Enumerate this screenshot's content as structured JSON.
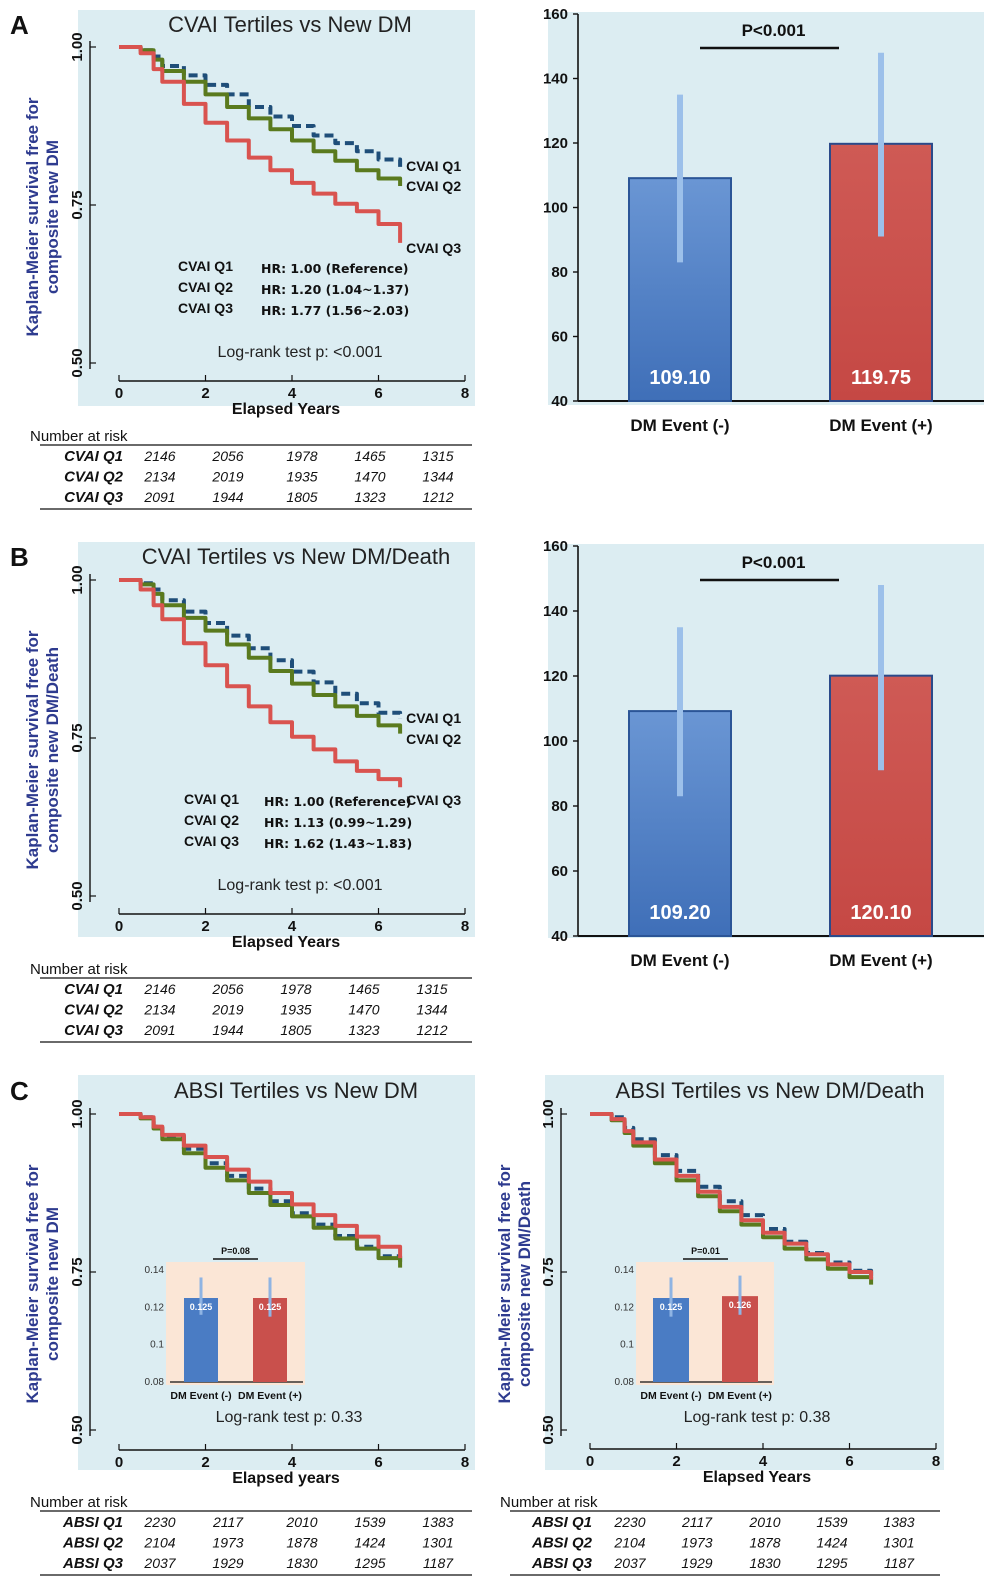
{
  "panel_letters": [
    "A",
    "B",
    "C"
  ],
  "number_at_risk_label": "Number at risk",
  "chart_data": [
    {
      "id": "A_km",
      "type": "line",
      "title": "CVAI Tertiles vs New DM",
      "ylabel": "Kaplan-Meier survival free for composite new DM",
      "xlabel": "Elapsed Years",
      "xlim": [
        0,
        8
      ],
      "ylim": [
        0.5,
        1.0
      ],
      "xticks": [
        "0",
        "2",
        "4",
        "6",
        "8"
      ],
      "yticks": [
        "0.50",
        "0.75",
        "1.00"
      ],
      "grid": false,
      "series": [
        {
          "name": "CVAI Q1",
          "color": "#1f4e79",
          "dashed": true,
          "x": [
            0,
            0.3,
            0.5,
            0.8,
            1,
            1.5,
            2,
            2.5,
            3,
            3.5,
            4,
            4.5,
            5,
            5.5,
            6,
            6.5
          ],
          "y": [
            1.0,
            1.0,
            0.995,
            0.985,
            0.97,
            0.955,
            0.94,
            0.925,
            0.905,
            0.89,
            0.875,
            0.86,
            0.848,
            0.835,
            0.822,
            0.81
          ]
        },
        {
          "name": "CVAI Q2",
          "color": "#5a7a1e",
          "dashed": false,
          "x": [
            0,
            0.3,
            0.5,
            0.8,
            1,
            1.5,
            2,
            2.5,
            3,
            3.5,
            4,
            4.5,
            5,
            5.5,
            6,
            6.5
          ],
          "y": [
            1.0,
            1.0,
            0.995,
            0.98,
            0.962,
            0.945,
            0.925,
            0.905,
            0.887,
            0.87,
            0.852,
            0.835,
            0.82,
            0.805,
            0.792,
            0.78
          ]
        },
        {
          "name": "CVAI Q3",
          "color": "#d9534f",
          "dashed": false,
          "x": [
            0,
            0.3,
            0.5,
            0.8,
            1,
            1.5,
            2,
            2.5,
            3,
            3.5,
            4,
            4.5,
            5,
            5.5,
            6,
            6.5
          ],
          "y": [
            1.0,
            1.0,
            0.99,
            0.965,
            0.945,
            0.91,
            0.88,
            0.852,
            0.825,
            0.805,
            0.785,
            0.768,
            0.752,
            0.74,
            0.72,
            0.69
          ]
        }
      ],
      "hr_rows": [
        {
          "group": "CVAI Q1",
          "hr": "HR: 1.00 (Reference)"
        },
        {
          "group": "CVAI Q2",
          "hr": "HR: 1.20 (1.04~1.37)"
        },
        {
          "group": "CVAI Q3",
          "hr": "HR: 1.77 (1.56~2.03)"
        }
      ],
      "logrank": "Log-rank test p: <0.001",
      "risk_table": [
        {
          "group": "CVAI Q1",
          "values": [
            "2146",
            "2056",
            "1978",
            "1465",
            "1315"
          ]
        },
        {
          "group": "CVAI Q2",
          "values": [
            "2134",
            "2019",
            "1935",
            "1470",
            "1344"
          ]
        },
        {
          "group": "CVAI Q3",
          "values": [
            "2091",
            "1944",
            "1805",
            "1323",
            "1212"
          ]
        }
      ]
    },
    {
      "id": "A_bar",
      "type": "bar",
      "categories": [
        "DM Event (-)",
        "DM Event (+)"
      ],
      "values": [
        109.1,
        119.75
      ],
      "value_labels": [
        "109.10",
        "119.75"
      ],
      "error_low": [
        83,
        91
      ],
      "error_high": [
        135,
        148
      ],
      "colors": [
        "#4a7cc4",
        "#c9504c"
      ],
      "ylim": [
        40,
        160
      ],
      "yticks": [
        "40",
        "60",
        "80",
        "100",
        "120",
        "140",
        "160"
      ],
      "annotation": "P<0.001"
    },
    {
      "id": "B_km",
      "type": "line",
      "title": "CVAI Tertiles vs New DM/Death",
      "ylabel": "Kaplan-Meier survival free for composite new DM/Death",
      "xlabel": "Elapsed Years",
      "xlim": [
        0,
        8
      ],
      "ylim": [
        0.5,
        1.0
      ],
      "xticks": [
        "0",
        "2",
        "4",
        "6",
        "8"
      ],
      "yticks": [
        "0.50",
        "0.75",
        "1.00"
      ],
      "grid": false,
      "series": [
        {
          "name": "CVAI Q1",
          "color": "#1f4e79",
          "dashed": true,
          "x": [
            0,
            0.3,
            0.5,
            0.8,
            1,
            1.5,
            2,
            2.5,
            3,
            3.5,
            4,
            4.5,
            5,
            5.5,
            6,
            6.5
          ],
          "y": [
            1.0,
            1.0,
            0.995,
            0.985,
            0.968,
            0.95,
            0.932,
            0.912,
            0.892,
            0.873,
            0.855,
            0.838,
            0.82,
            0.805,
            0.79,
            0.78
          ]
        },
        {
          "name": "CVAI Q2",
          "color": "#5a7a1e",
          "dashed": false,
          "x": [
            0,
            0.3,
            0.5,
            0.8,
            1,
            1.5,
            2,
            2.5,
            3,
            3.5,
            4,
            4.5,
            5,
            5.5,
            6,
            6.5
          ],
          "y": [
            1.0,
            1.0,
            0.993,
            0.978,
            0.96,
            0.94,
            0.92,
            0.898,
            0.877,
            0.856,
            0.836,
            0.818,
            0.8,
            0.785,
            0.77,
            0.757
          ]
        },
        {
          "name": "CVAI Q3",
          "color": "#d9534f",
          "dashed": false,
          "x": [
            0,
            0.3,
            0.5,
            0.8,
            1,
            1.5,
            2,
            2.5,
            3,
            3.5,
            4,
            4.5,
            5,
            5.5,
            6,
            6.5
          ],
          "y": [
            1.0,
            1.0,
            0.985,
            0.96,
            0.938,
            0.9,
            0.865,
            0.832,
            0.8,
            0.775,
            0.752,
            0.732,
            0.713,
            0.698,
            0.685,
            0.672
          ]
        }
      ],
      "hr_rows": [
        {
          "group": "CVAI Q1",
          "hr": "HR: 1.00 (Reference)"
        },
        {
          "group": "CVAI Q2",
          "hr": "HR: 1.13 (0.99~1.29)"
        },
        {
          "group": "CVAI Q3",
          "hr": "HR: 1.62 (1.43~1.83)"
        }
      ],
      "logrank": "Log-rank test p: <0.001",
      "risk_table": [
        {
          "group": "CVAI Q1",
          "values": [
            "2146",
            "2056",
            "1978",
            "1465",
            "1315"
          ]
        },
        {
          "group": "CVAI Q2",
          "values": [
            "2134",
            "2019",
            "1935",
            "1470",
            "1344"
          ]
        },
        {
          "group": "CVAI Q3",
          "values": [
            "2091",
            "1944",
            "1805",
            "1323",
            "1212"
          ]
        }
      ]
    },
    {
      "id": "B_bar",
      "type": "bar",
      "categories": [
        "DM Event (-)",
        "DM Event (+)"
      ],
      "values": [
        109.2,
        120.1
      ],
      "value_labels": [
        "109.20",
        "120.10"
      ],
      "error_low": [
        83,
        91
      ],
      "error_high": [
        135,
        148
      ],
      "colors": [
        "#4a7cc4",
        "#c9504c"
      ],
      "ylim": [
        40,
        160
      ],
      "yticks": [
        "40",
        "60",
        "80",
        "100",
        "120",
        "140",
        "160"
      ],
      "annotation": "P<0.001"
    },
    {
      "id": "C1_km",
      "type": "line",
      "title": "ABSI Tertiles vs New DM",
      "ylabel": "Kaplan-Meier survival free for composite new DM",
      "xlabel": "Elapsed years",
      "xlim": [
        0,
        8
      ],
      "ylim": [
        0.5,
        1.0
      ],
      "xticks": [
        "0",
        "2",
        "4",
        "6",
        "8"
      ],
      "yticks": [
        "0.50",
        "0.75",
        "1.00"
      ],
      "grid": false,
      "series": [
        {
          "name": "ABSI Q1",
          "color": "#1f4e79",
          "dashed": true,
          "x": [
            0,
            0.3,
            0.5,
            0.8,
            1,
            1.5,
            2,
            2.5,
            3,
            3.5,
            4,
            4.5,
            5,
            5.5,
            6,
            6.5
          ],
          "y": [
            1.0,
            1.0,
            0.995,
            0.98,
            0.965,
            0.945,
            0.922,
            0.902,
            0.882,
            0.862,
            0.843,
            0.825,
            0.807,
            0.79,
            0.775,
            0.76
          ]
        },
        {
          "name": "ABSI Q2",
          "color": "#5a7a1e",
          "dashed": false,
          "x": [
            0,
            0.3,
            0.5,
            0.8,
            1,
            1.5,
            2,
            2.5,
            3,
            3.5,
            4,
            4.5,
            5,
            5.5,
            6,
            6.5
          ],
          "y": [
            1.0,
            1.0,
            0.993,
            0.977,
            0.96,
            0.938,
            0.915,
            0.895,
            0.875,
            0.856,
            0.838,
            0.82,
            0.803,
            0.787,
            0.772,
            0.757
          ]
        },
        {
          "name": "ABSI Q3",
          "color": "#d9534f",
          "dashed": false,
          "x": [
            0,
            0.3,
            0.5,
            0.8,
            1,
            1.5,
            2,
            2.5,
            3,
            3.5,
            4,
            4.5,
            5,
            5.5,
            6,
            6.5
          ],
          "y": [
            1.0,
            1.0,
            0.995,
            0.98,
            0.967,
            0.95,
            0.932,
            0.912,
            0.893,
            0.875,
            0.857,
            0.84,
            0.823,
            0.806,
            0.79,
            0.772
          ]
        }
      ],
      "logrank": "Log-rank test p: 0.33",
      "inset": {
        "categories": [
          "DM Event (-)",
          "DM Event (+)"
        ],
        "values": [
          0.125,
          0.125
        ],
        "value_labels": [
          "0.125",
          "0.125"
        ],
        "error_low": [
          0.116,
          0.115
        ],
        "error_high": [
          0.136,
          0.136
        ],
        "ylim": [
          0.08,
          0.14
        ],
        "yticks": [
          "0.08",
          "0.1",
          "0.12",
          "0.14"
        ],
        "annotation": "P=0.08"
      },
      "risk_table": [
        {
          "group": "ABSI Q1",
          "values": [
            "2230",
            "2117",
            "2010",
            "1539",
            "1383"
          ]
        },
        {
          "group": "ABSI Q2",
          "values": [
            "2104",
            "1973",
            "1878",
            "1424",
            "1301"
          ]
        },
        {
          "group": "ABSI Q3",
          "values": [
            "2037",
            "1929",
            "1830",
            "1295",
            "1187"
          ]
        }
      ]
    },
    {
      "id": "C2_km",
      "type": "line",
      "title": "ABSI Tertiles vs New DM/Death",
      "ylabel": "Kaplan-Meier survival free for composite new DM/Death",
      "xlabel": "Elapsed Years",
      "xlim": [
        0,
        8
      ],
      "ylim": [
        0.5,
        1.0
      ],
      "xticks": [
        "0",
        "2",
        "4",
        "6",
        "8"
      ],
      "yticks": [
        "0.50",
        "0.75",
        "1.00"
      ],
      "grid": false,
      "series": [
        {
          "name": "ABSI Q1",
          "color": "#1f4e79",
          "dashed": true,
          "x": [
            0,
            0.3,
            0.5,
            0.8,
            1,
            1.5,
            2,
            2.5,
            3,
            3.5,
            4,
            4.5,
            5,
            5.5,
            6,
            6.5
          ],
          "y": [
            1.0,
            1.0,
            0.995,
            0.978,
            0.96,
            0.935,
            0.91,
            0.885,
            0.862,
            0.84,
            0.818,
            0.798,
            0.78,
            0.765,
            0.752,
            0.742
          ]
        },
        {
          "name": "ABSI Q2",
          "color": "#5a7a1e",
          "dashed": false,
          "x": [
            0,
            0.3,
            0.5,
            0.8,
            1,
            1.5,
            2,
            2.5,
            3,
            3.5,
            4,
            4.5,
            5,
            5.5,
            6,
            6.5
          ],
          "y": [
            1.0,
            1.0,
            0.99,
            0.97,
            0.95,
            0.922,
            0.895,
            0.87,
            0.846,
            0.825,
            0.805,
            0.787,
            0.77,
            0.755,
            0.742,
            0.73
          ]
        },
        {
          "name": "ABSI Q3",
          "color": "#d9534f",
          "dashed": false,
          "x": [
            0,
            0.3,
            0.5,
            0.8,
            1,
            1.5,
            2,
            2.5,
            3,
            3.5,
            4,
            4.5,
            5,
            5.5,
            6,
            6.5
          ],
          "y": [
            1.0,
            1.0,
            0.992,
            0.973,
            0.955,
            0.928,
            0.902,
            0.877,
            0.853,
            0.832,
            0.812,
            0.795,
            0.778,
            0.762,
            0.75,
            0.738
          ]
        }
      ],
      "logrank": "Log-rank test p: 0.38",
      "inset": {
        "categories": [
          "DM Event (-)",
          "DM Event (+)"
        ],
        "values": [
          0.125,
          0.126
        ],
        "value_labels": [
          "0.125",
          "0.126"
        ],
        "error_low": [
          0.115,
          0.116
        ],
        "error_high": [
          0.136,
          0.137
        ],
        "ylim": [
          0.08,
          0.14
        ],
        "yticks": [
          "0.08",
          "0.1",
          "0.12",
          "0.14"
        ],
        "annotation": "P=0.01"
      },
      "risk_table": [
        {
          "group": "ABSI Q1",
          "values": [
            "2230",
            "2117",
            "2010",
            "1539",
            "1383"
          ]
        },
        {
          "group": "ABSI Q2",
          "values": [
            "2104",
            "1973",
            "1878",
            "1424",
            "1301"
          ]
        },
        {
          "group": "ABSI Q3",
          "values": [
            "2037",
            "1929",
            "1830",
            "1295",
            "1187"
          ]
        }
      ]
    }
  ]
}
